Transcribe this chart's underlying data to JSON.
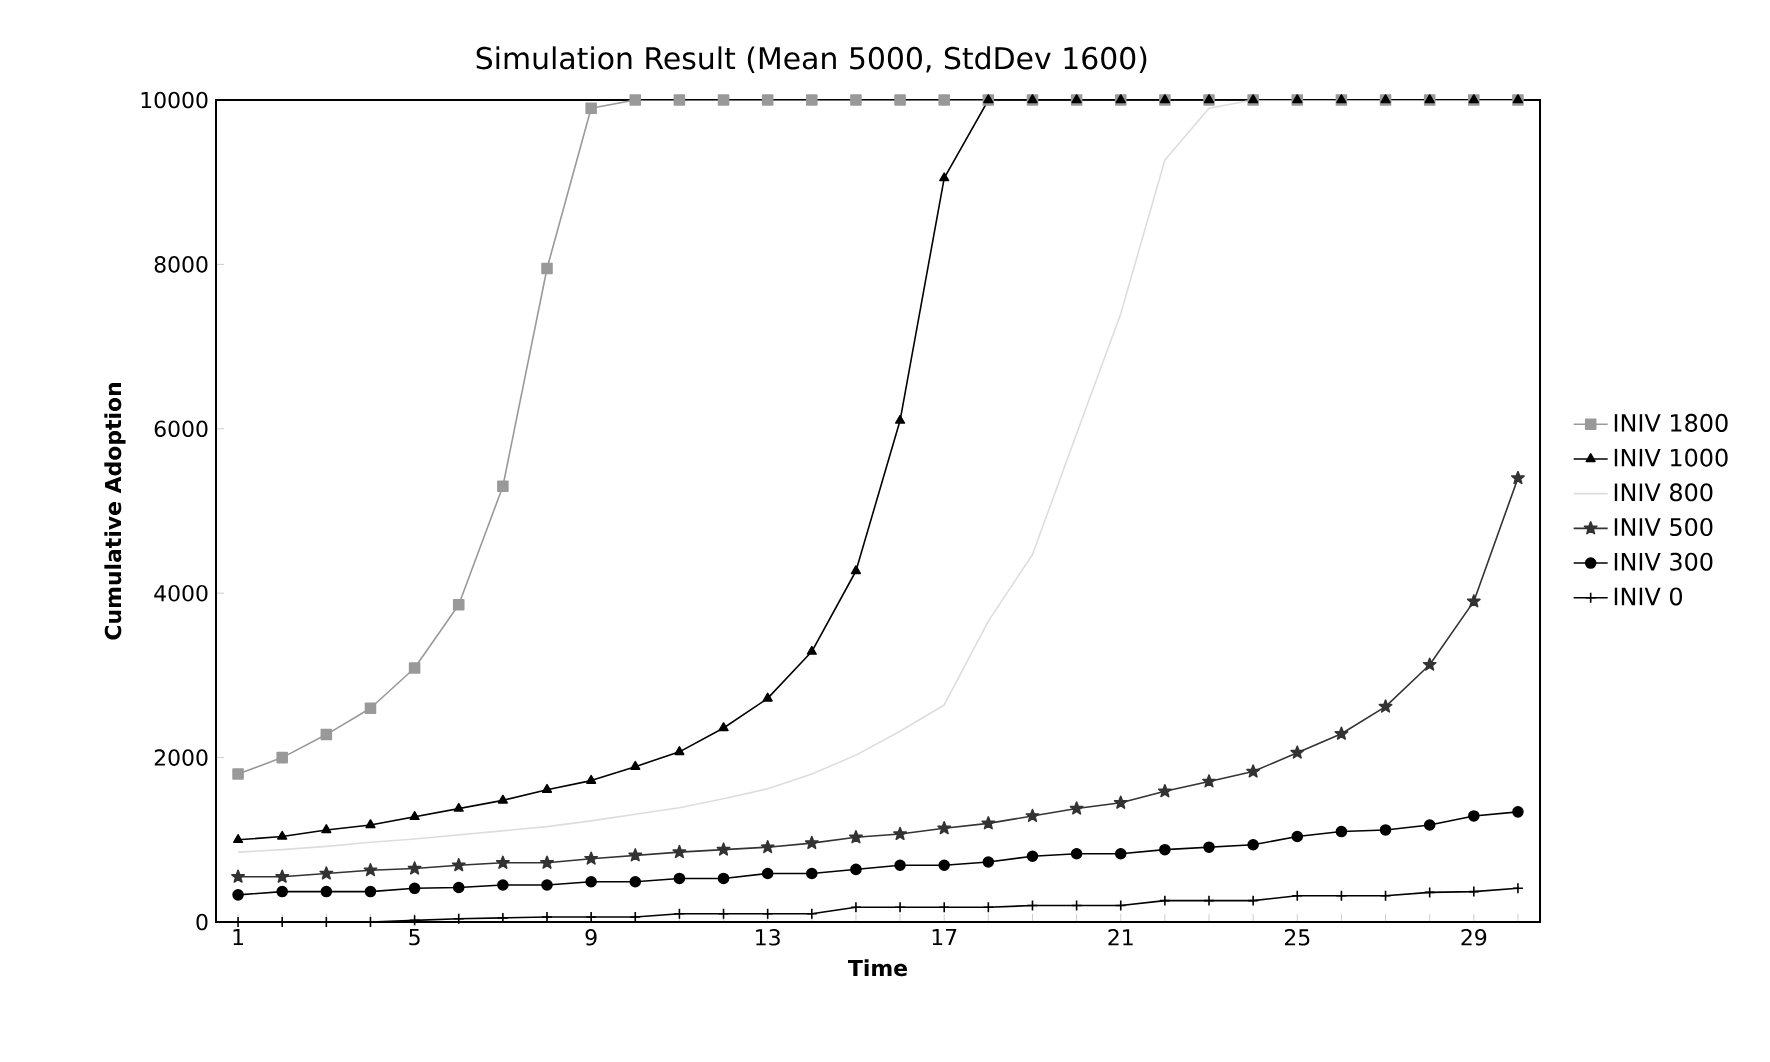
{
  "chart_data": {
    "type": "line",
    "title": "Simulation Result (Mean 5000, StdDev 1600)",
    "xlabel": "Time",
    "ylabel": "Cumulative Adoption",
    "x": [
      1,
      2,
      3,
      4,
      5,
      6,
      7,
      8,
      9,
      10,
      11,
      12,
      13,
      14,
      15,
      16,
      17,
      18,
      19,
      20,
      21,
      22,
      23,
      24,
      25,
      26,
      27,
      28,
      29,
      30
    ],
    "xlim": [
      0.5,
      30.5
    ],
    "ylim": [
      0,
      10000
    ],
    "xticks": [
      1,
      {
        "value": 2,
        "label": null
      },
      {
        "value": 3,
        "label": null
      },
      {
        "value": 4,
        "label": null
      },
      5,
      {
        "value": 6,
        "label": null
      },
      {
        "value": 7,
        "label": null
      },
      {
        "value": 8,
        "label": null
      },
      9,
      {
        "value": 10,
        "label": null
      },
      {
        "value": 11,
        "label": null
      },
      {
        "value": 12,
        "label": null
      },
      13,
      {
        "value": 14,
        "label": null
      },
      {
        "value": 15,
        "label": null
      },
      {
        "value": 16,
        "label": null
      },
      17,
      {
        "value": 18,
        "label": null
      },
      {
        "value": 19,
        "label": null
      },
      {
        "value": 20,
        "label": null
      },
      21,
      {
        "value": 22,
        "label": null
      },
      {
        "value": 23,
        "label": null
      },
      {
        "value": 24,
        "label": null
      },
      25,
      {
        "value": 26,
        "label": null
      },
      {
        "value": 27,
        "label": null
      },
      {
        "value": 28,
        "label": null
      },
      29,
      {
        "value": 30,
        "label": null
      }
    ],
    "yticks": [
      0,
      2000,
      4000,
      6000,
      8000,
      10000
    ],
    "grid": false,
    "legend": "right",
    "line_style": "solid",
    "series": [
      {
        "name": "INIV 1800",
        "color": "#999999",
        "marker": "square",
        "values": [
          1800,
          2000,
          2280,
          2600,
          3090,
          3860,
          5300,
          7950,
          9900,
          10000,
          10000,
          10000,
          10000,
          10000,
          10000,
          10000,
          10000,
          10000,
          10000,
          10000,
          10000,
          10000,
          10000,
          10000,
          10000,
          10000,
          10000,
          10000,
          10000,
          10000
        ]
      },
      {
        "name": "INIV 1000",
        "color": "#000000",
        "marker": "triangle",
        "values": [
          1000,
          1040,
          1120,
          1180,
          1280,
          1380,
          1480,
          1610,
          1720,
          1890,
          2070,
          2360,
          2720,
          3290,
          4270,
          6100,
          9050,
          10000,
          10000,
          10000,
          10000,
          10000,
          10000,
          10000,
          10000,
          10000,
          10000,
          10000,
          10000,
          10000
        ]
      },
      {
        "name": "INIV 800",
        "color": "#dddddd",
        "marker": "none",
        "values": [
          850,
          880,
          920,
          970,
          1010,
          1060,
          1110,
          1160,
          1230,
          1310,
          1390,
          1500,
          1620,
          1800,
          2030,
          2320,
          2640,
          3660,
          4470,
          5940,
          7400,
          9270,
          9900,
          10000,
          10000,
          10000,
          10000,
          10000,
          10000,
          10000
        ]
      },
      {
        "name": "INIV 500",
        "color": "#333333",
        "marker": "star",
        "values": [
          550,
          550,
          590,
          630,
          650,
          690,
          720,
          720,
          770,
          810,
          850,
          880,
          910,
          960,
          1030,
          1070,
          1140,
          1200,
          1290,
          1380,
          1450,
          1590,
          1710,
          1830,
          2060,
          2290,
          2620,
          3130,
          3900,
          5400
        ]
      },
      {
        "name": "INIV 300",
        "color": "#000000",
        "marker": "circle",
        "values": [
          330,
          370,
          370,
          370,
          410,
          420,
          450,
          450,
          490,
          490,
          530,
          530,
          590,
          590,
          640,
          690,
          690,
          730,
          800,
          830,
          830,
          880,
          910,
          940,
          1040,
          1100,
          1120,
          1180,
          1290,
          1340
        ]
      },
      {
        "name": "INIV 0",
        "color": "#000000",
        "marker": "cross",
        "values": [
          0,
          0,
          0,
          0,
          20,
          40,
          50,
          60,
          60,
          60,
          100,
          100,
          100,
          100,
          180,
          180,
          180,
          180,
          200,
          200,
          200,
          260,
          260,
          260,
          320,
          320,
          320,
          360,
          370,
          410
        ]
      }
    ]
  }
}
